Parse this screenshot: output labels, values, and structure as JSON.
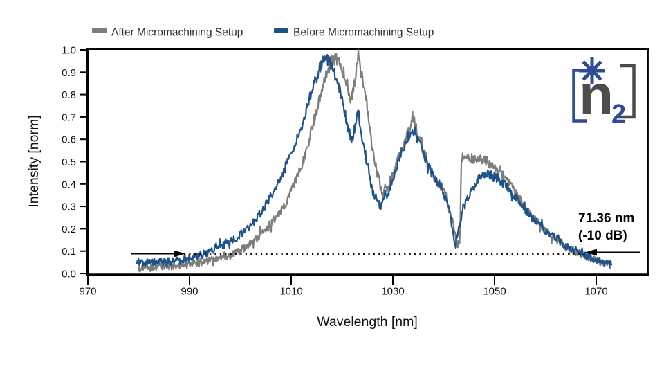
{
  "figure": {
    "background": "#ffffff",
    "legend": {
      "items": [
        {
          "label": "After  Micromachining Setup",
          "color": "#7d7d7d"
        },
        {
          "label": "Before  Micromachining Setup",
          "color": "#1d5389"
        }
      ]
    },
    "annotation": {
      "line1": "71.36 nm",
      "line2": "(-10 dB)"
    },
    "logo": {
      "n": "n",
      "sub": "2",
      "blue": "#2e4b97",
      "dark": "#4a4a4a"
    }
  },
  "chart_data": {
    "type": "line",
    "title": "",
    "xlabel": "Wavelength [nm]",
    "ylabel": "Intensity [norm]",
    "xlim": [
      970,
      1080
    ],
    "ylim": [
      0.0,
      1.0
    ],
    "x_ticks": [
      "970",
      "990",
      "1010",
      "1030",
      "1050",
      "1070"
    ],
    "y_ticks": [
      "0.0",
      "0.1",
      "0.2",
      "0.3",
      "0.4",
      "0.5",
      "0.6",
      "0.7",
      "0.8",
      "0.9",
      "1.0"
    ],
    "grid": false,
    "legend_position": "top-left",
    "bandwidth_annotation": {
      "width_nm": 71.36,
      "level_db": -10,
      "intensity_level": 0.09
    },
    "series": [
      {
        "name": "After Micromachining Setup",
        "color": "#7d7d7d",
        "seed": 1234,
        "anchors": [
          [
            980,
            0.022
          ],
          [
            984,
            0.028
          ],
          [
            988,
            0.036
          ],
          [
            992,
            0.048
          ],
          [
            995,
            0.062
          ],
          [
            998,
            0.082
          ],
          [
            1001,
            0.115
          ],
          [
            1004,
            0.17
          ],
          [
            1007,
            0.25
          ],
          [
            1009,
            0.32
          ],
          [
            1011,
            0.42
          ],
          [
            1013,
            0.55
          ],
          [
            1015,
            0.73
          ],
          [
            1016.5,
            0.87
          ],
          [
            1017.8,
            0.95
          ],
          [
            1019,
            0.96
          ],
          [
            1020.3,
            0.91
          ],
          [
            1021.8,
            0.775
          ],
          [
            1023.2,
            0.965
          ],
          [
            1024.5,
            0.82
          ],
          [
            1026,
            0.545
          ],
          [
            1028,
            0.345
          ],
          [
            1030,
            0.44
          ],
          [
            1032,
            0.575
          ],
          [
            1034,
            0.695
          ],
          [
            1036,
            0.545
          ],
          [
            1038,
            0.43
          ],
          [
            1040,
            0.375
          ],
          [
            1041.5,
            0.25
          ],
          [
            1042.7,
            0.13
          ],
          [
            1043.2,
            0.155
          ],
          [
            1043.45,
            0.52
          ],
          [
            1045,
            0.515
          ],
          [
            1047,
            0.51
          ],
          [
            1048.7,
            0.5
          ],
          [
            1050,
            0.47
          ],
          [
            1051.5,
            0.44
          ],
          [
            1054,
            0.365
          ],
          [
            1056,
            0.3
          ],
          [
            1058,
            0.24
          ],
          [
            1060,
            0.195
          ],
          [
            1062,
            0.155
          ],
          [
            1064,
            0.12
          ],
          [
            1066,
            0.095
          ],
          [
            1068,
            0.075
          ],
          [
            1070,
            0.057
          ],
          [
            1072,
            0.045
          ],
          [
            1072.8,
            0.035
          ]
        ]
      },
      {
        "name": "Before Micromachining Setup",
        "color": "#1d5389",
        "seed": 5678,
        "anchors": [
          [
            979.5,
            0.05
          ],
          [
            983,
            0.05
          ],
          [
            986,
            0.055
          ],
          [
            989,
            0.065
          ],
          [
            992,
            0.08
          ],
          [
            995,
            0.105
          ],
          [
            998,
            0.14
          ],
          [
            1001,
            0.19
          ],
          [
            1004,
            0.27
          ],
          [
            1007,
            0.385
          ],
          [
            1010,
            0.53
          ],
          [
            1012,
            0.655
          ],
          [
            1014,
            0.81
          ],
          [
            1015.5,
            0.91
          ],
          [
            1016.5,
            0.965
          ],
          [
            1017.5,
            0.945
          ],
          [
            1019,
            0.87
          ],
          [
            1020.5,
            0.73
          ],
          [
            1021.8,
            0.585
          ],
          [
            1023.2,
            0.72
          ],
          [
            1024.3,
            0.565
          ],
          [
            1026,
            0.37
          ],
          [
            1027.5,
            0.295
          ],
          [
            1029,
            0.35
          ],
          [
            1031,
            0.5
          ],
          [
            1033,
            0.615
          ],
          [
            1034.3,
            0.635
          ],
          [
            1036,
            0.53
          ],
          [
            1038,
            0.435
          ],
          [
            1039.5,
            0.385
          ],
          [
            1041,
            0.29
          ],
          [
            1042.3,
            0.115
          ],
          [
            1043.2,
            0.22
          ],
          [
            1044,
            0.3
          ],
          [
            1045.5,
            0.37
          ],
          [
            1047,
            0.425
          ],
          [
            1048.5,
            0.445
          ],
          [
            1050,
            0.43
          ],
          [
            1052,
            0.4
          ],
          [
            1054,
            0.345
          ],
          [
            1056,
            0.285
          ],
          [
            1058,
            0.235
          ],
          [
            1060,
            0.19
          ],
          [
            1062,
            0.155
          ],
          [
            1064,
            0.125
          ],
          [
            1066,
            0.1
          ],
          [
            1068,
            0.08
          ],
          [
            1070,
            0.062
          ],
          [
            1071.5,
            0.05
          ],
          [
            1073,
            0.04
          ]
        ]
      }
    ]
  }
}
